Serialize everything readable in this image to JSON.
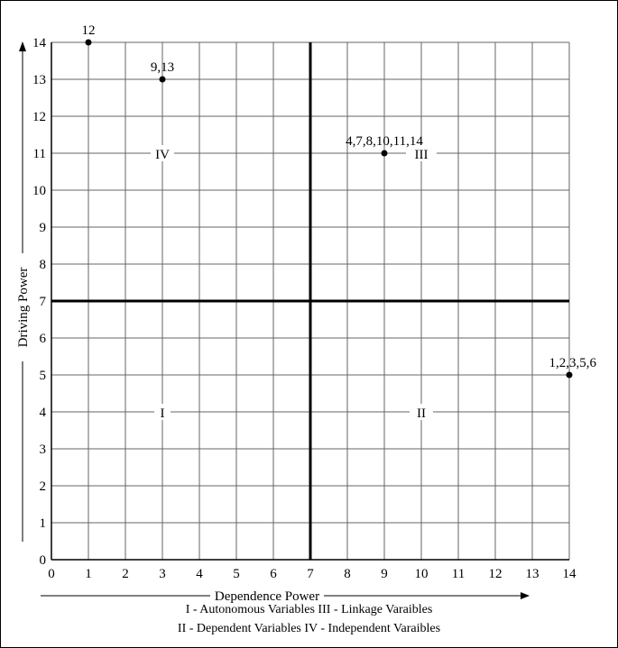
{
  "chart_data": {
    "type": "scatter",
    "xlabel": "Dependence Power",
    "ylabel": "Driving Power",
    "xlim": [
      0,
      14
    ],
    "ylim": [
      0,
      14
    ],
    "xticks": [
      "0",
      "1",
      "2",
      "3",
      "4",
      "5",
      "6",
      "7",
      "8",
      "9",
      "10",
      "11",
      "12",
      "13",
      "14"
    ],
    "yticks": [
      "0",
      "1",
      "2",
      "3",
      "4",
      "5",
      "6",
      "7",
      "8",
      "9",
      "10",
      "11",
      "12",
      "13",
      "14"
    ],
    "grid": true,
    "quadrant_dividers": {
      "x": 7,
      "y": 7
    },
    "points": [
      {
        "x": 1,
        "y": 14,
        "label": "12"
      },
      {
        "x": 3,
        "y": 13,
        "label": "9,13"
      },
      {
        "x": 9,
        "y": 11,
        "label": "4,7,8,10,11,14"
      },
      {
        "x": 14,
        "y": 5,
        "label": "1,2,3,5,6"
      }
    ],
    "quadrant_labels": [
      {
        "x": 3,
        "y": 11,
        "text": "IV"
      },
      {
        "x": 10,
        "y": 11,
        "text": "III"
      },
      {
        "x": 3,
        "y": 4,
        "text": "I"
      },
      {
        "x": 10,
        "y": 4,
        "text": "II"
      }
    ],
    "legend_lines": [
      "I - Autonomous Variables III - Linkage Varaibles",
      "II - Dependent Variables IV - Independent Varaibles"
    ]
  },
  "colors": {
    "axis": "#000000",
    "grid": "#666666",
    "background": "#ffffff"
  }
}
